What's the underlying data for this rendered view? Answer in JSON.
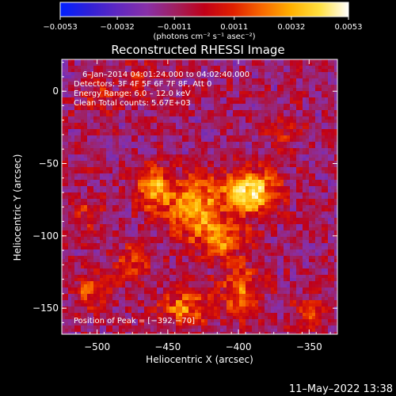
{
  "chart_data": {
    "type": "heatmap",
    "title": "Reconstructed RHESSI Image",
    "xlabel": "Heliocentric X (arcsec)",
    "ylabel": "Heliocentric Y (arcsec)",
    "xlim": [
      -525,
      -330
    ],
    "ylim": [
      -168,
      22
    ],
    "xticks": [
      -500,
      -450,
      -400,
      -350
    ],
    "yticks": [
      0,
      -50,
      -100,
      -150
    ],
    "xtick_labels": [
      "−500",
      "−450",
      "−400",
      "−350"
    ],
    "ytick_labels": [
      "0",
      "−50",
      "−100",
      "−150"
    ],
    "colorbar": {
      "range": [
        -0.0053,
        0.0053
      ],
      "tick_values": [
        -0.0053,
        -0.0032,
        -0.0011,
        0.0011,
        0.0032,
        0.0053
      ],
      "tick_labels": [
        "−0.0053",
        "−0.0032",
        "−0.0011",
        "0.0011",
        "0.0032",
        "0.0053"
      ],
      "units": "(photons cm⁻² s⁻¹ asec⁻²)"
    },
    "annotations": {
      "time_range": "6–Jan–2014 04:01:24.000 to 04:02:40.000",
      "detectors": "Detectors: 3F 4F 5F 6F 7F 8F, Att 0",
      "energy": "Energy Range: 6.0 – 12.0 keV",
      "clean": "Clean     Total counts: 5.67E+03",
      "peak": "Position of Peak = [−392,−70]"
    },
    "peak": [
      -392,
      -70
    ],
    "sources": [
      {
        "x": -392,
        "y": -70,
        "amp": 0.0053,
        "sx": 14,
        "sy": 11
      },
      {
        "x": -432,
        "y": -80,
        "amp": 0.0042,
        "sx": 12,
        "sy": 14
      },
      {
        "x": -460,
        "y": -68,
        "amp": 0.004,
        "sx": 9,
        "sy": 10
      },
      {
        "x": -412,
        "y": -103,
        "amp": 0.0033,
        "sx": 12,
        "sy": 9
      },
      {
        "x": -398,
        "y": -138,
        "amp": 0.003,
        "sx": 10,
        "sy": 12
      },
      {
        "x": -438,
        "y": -150,
        "amp": 0.0032,
        "sx": 13,
        "sy": 8
      },
      {
        "x": -475,
        "y": -120,
        "amp": 0.002,
        "sx": 9,
        "sy": 10
      },
      {
        "x": -505,
        "y": -138,
        "amp": 0.0024,
        "sx": 8,
        "sy": 8
      },
      {
        "x": -505,
        "y": -85,
        "amp": 0.0016,
        "sx": 8,
        "sy": 9
      },
      {
        "x": -500,
        "y": -5,
        "amp": 0.0016,
        "sx": 9,
        "sy": 8
      },
      {
        "x": -352,
        "y": -155,
        "amp": 0.0015,
        "sx": 9,
        "sy": 9
      },
      {
        "x": -368,
        "y": -30,
        "amp": 0.0012,
        "sx": 8,
        "sy": 8
      },
      {
        "x": -470,
        "y": 8,
        "amp": 0.0012,
        "sx": 8,
        "sy": 8
      }
    ],
    "background_level": -0.0011,
    "colors": {
      "scale": [
        "#0020ff",
        "#3020d8",
        "#6028c0",
        "#8830a8",
        "#a02060",
        "#c00018",
        "#e02000",
        "#f86800",
        "#ffb000",
        "#ffe040",
        "#ffffff"
      ]
    }
  },
  "footer": {
    "timestamp": "11–May–2022 13:38"
  }
}
